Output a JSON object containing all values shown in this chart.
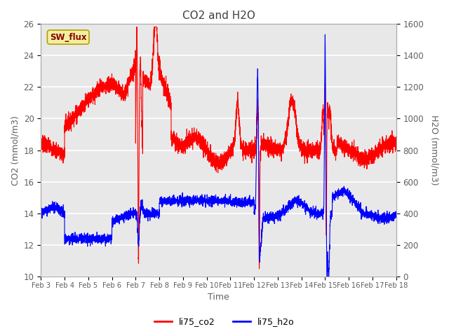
{
  "title": "CO2 and H2O",
  "xlabel": "Time",
  "ylabel_left": "CO2 (mmol/m3)",
  "ylabel_right": "H2O (mmol/m3)",
  "ylim_left": [
    10,
    26
  ],
  "ylim_right": [
    0,
    1600
  ],
  "yticks_left": [
    10,
    12,
    14,
    16,
    18,
    20,
    22,
    24,
    26
  ],
  "yticks_right": [
    0,
    200,
    400,
    600,
    800,
    1000,
    1200,
    1400,
    1600
  ],
  "xtick_labels": [
    "Feb 3",
    "Feb 4",
    "Feb 5",
    "Feb 6",
    "Feb 7",
    "Feb 8",
    "Feb 9",
    "Feb 10",
    "Feb 11",
    "Feb 12",
    "Feb 13",
    "Feb 14",
    "Feb 15",
    "Feb 16",
    "Feb 17",
    "Feb 18"
  ],
  "legend_labels": [
    "li75_co2",
    "li75_h2o"
  ],
  "sw_flux_label": "SW_flux",
  "axes_bg_color": "#e8e8e8",
  "title_color": "#404040",
  "tick_color": "#606060",
  "co2_color": "red",
  "h2o_color": "blue",
  "linewidth": 0.8
}
